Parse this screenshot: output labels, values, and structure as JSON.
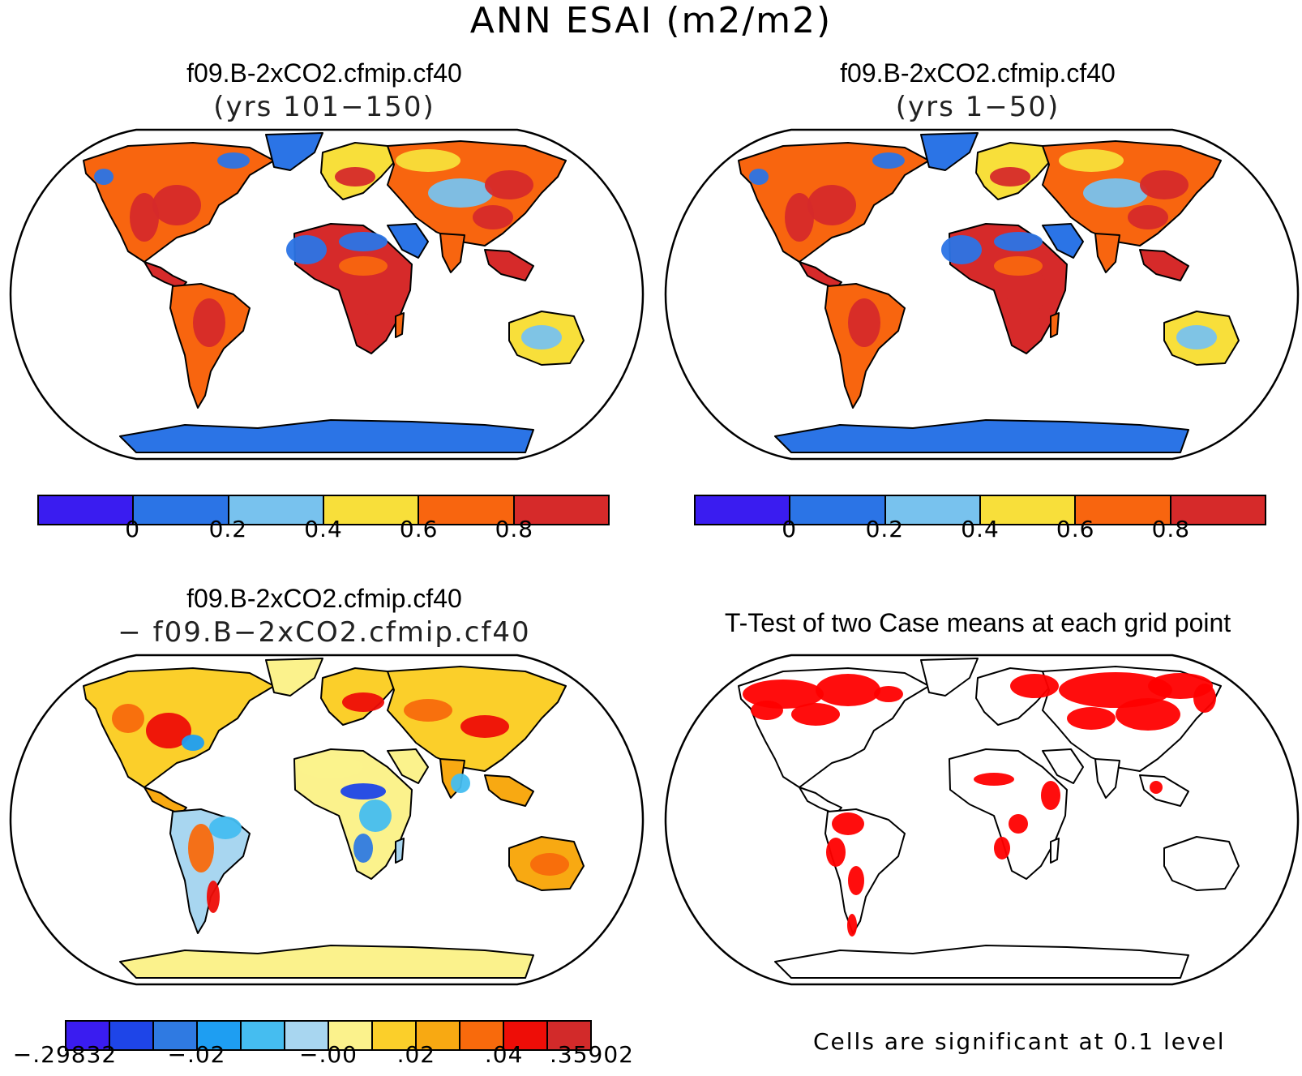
{
  "title": "ANN ESAI (m2/m2)",
  "panels": [
    {
      "id": "top-left",
      "title": "f09.B-2xCO2.cfmip.cf40",
      "subtitle": "(yrs 101−150)"
    },
    {
      "id": "top-right",
      "title": "f09.B-2xCO2.cfmip.cf40",
      "subtitle": "(yrs 1−50)"
    },
    {
      "id": "bottom-left",
      "title": "f09.B-2xCO2.cfmip.cf40",
      "subtitle": "− f09.B−2xCO2.cfmip.cf40"
    },
    {
      "id": "bottom-right",
      "title": "T-Test of two Case means at each grid point",
      "subtitle": ""
    }
  ],
  "colorbar_top": {
    "colors": [
      "#3a1cf0",
      "#2b74e6",
      "#78c2ee",
      "#f8df3a",
      "#f8650f",
      "#d62a2a"
    ],
    "tick_labels": [
      "0",
      "0.2",
      "0.4",
      "0.6",
      "0.8"
    ]
  },
  "colorbar_diff": {
    "colors": [
      "#3a1cf0",
      "#1e45e8",
      "#2f7ae2",
      "#1e9ef2",
      "#45bdf0",
      "#a8d6f0",
      "#fbf28c",
      "#fbcf2a",
      "#f8a912",
      "#f86a0c",
      "#ee0d07",
      "#d22a2a"
    ],
    "tick_labels": [
      "−.29832",
      "−.02",
      "−.00",
      ".02",
      ".04",
      ".35902"
    ]
  },
  "significance_note": "Cells are significant at 0.1 level",
  "colors": {
    "ocean": "#ffffff",
    "outline": "#000000",
    "significant": "#ff0000"
  }
}
